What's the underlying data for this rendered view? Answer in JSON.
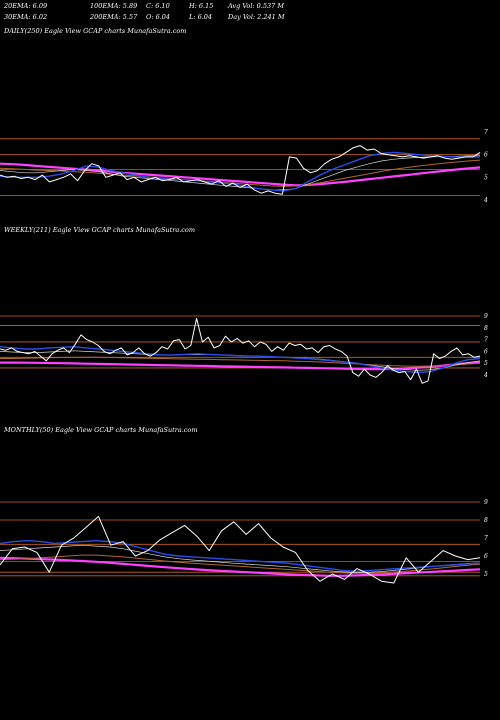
{
  "header": {
    "row1": [
      "20EMA: 6.09",
      "100EMA: 5.89",
      "C: 6.10",
      "H: 6.15",
      "Avg Vol: 0.537 M"
    ],
    "row2": [
      "30EMA: 6.02",
      "200EMA: 5.57",
      "O: 6.04",
      "L: 6.04",
      "Day Vol: 2.241 M"
    ]
  },
  "colors": {
    "background": "#000000",
    "price": "#ffffff",
    "ema20": "#2a4de8",
    "ema200": "#ff40ff",
    "ema_fine": "#d8d8d8",
    "ema_brown": "#b0662f",
    "level_line": "#c8641e"
  },
  "chart_data": [
    {
      "type": "line",
      "title": "DAILY(250) Eagle  View  GCAP charts MunafaSutra.com",
      "y_ticks": [
        "7",
        "6",
        "5",
        "4"
      ],
      "levels": [
        6.7,
        6.0,
        5.35,
        4.2
      ],
      "series": {
        "price": [
          5.1,
          5.0,
          5.05,
          4.95,
          5.0,
          4.9,
          5.1,
          4.8,
          4.9,
          5.0,
          5.15,
          4.85,
          5.3,
          5.6,
          5.5,
          5.0,
          5.1,
          5.2,
          4.9,
          5.0,
          4.8,
          4.9,
          5.0,
          4.85,
          4.9,
          5.0,
          4.8,
          4.85,
          4.9,
          4.8,
          4.7,
          4.85,
          4.6,
          4.75,
          4.55,
          4.7,
          4.45,
          4.3,
          4.4,
          4.3,
          4.25,
          5.9,
          5.85,
          5.4,
          5.2,
          5.3,
          5.6,
          5.8,
          5.9,
          6.1,
          6.3,
          6.4,
          6.2,
          6.25,
          6.05,
          6.0,
          5.95,
          5.9,
          5.95,
          5.9,
          5.85,
          5.9,
          5.95,
          5.85,
          5.8,
          5.85,
          5.9,
          5.9,
          6.1
        ],
        "ema20": [
          5.05,
          5.0,
          5.0,
          5.0,
          5.05,
          5.15,
          5.3,
          5.5,
          5.45,
          5.3,
          5.2,
          5.1,
          5.0,
          4.95,
          4.9,
          4.9,
          4.85,
          4.8,
          4.75,
          4.7,
          4.6,
          4.5,
          4.45,
          4.4,
          4.5,
          4.8,
          5.1,
          5.35,
          5.55,
          5.75,
          5.95,
          6.05,
          6.1,
          6.05,
          6.0,
          5.95,
          5.92,
          5.9,
          5.9,
          5.9
        ],
        "ema30": [
          5.3,
          5.25,
          5.2,
          5.2,
          5.25,
          5.3,
          5.35,
          5.3,
          5.25,
          5.15,
          5.05,
          5.0,
          4.95,
          4.9,
          4.85,
          4.8,
          4.75,
          4.7,
          4.65,
          4.6,
          4.55,
          4.5,
          4.45,
          4.45,
          4.5,
          4.7,
          4.9,
          5.1,
          5.3,
          5.45,
          5.6,
          5.72,
          5.8,
          5.85,
          5.88,
          5.9,
          5.92,
          5.93,
          5.95,
          5.95
        ],
        "ema100": [
          5.4,
          5.38,
          5.35,
          5.32,
          5.3,
          5.28,
          5.25,
          5.22,
          5.18,
          5.14,
          5.1,
          5.06,
          5.02,
          4.98,
          4.94,
          4.9,
          4.86,
          4.82,
          4.78,
          4.74,
          4.7,
          4.66,
          4.62,
          4.6,
          4.62,
          4.68,
          4.76,
          4.86,
          4.96,
          5.06,
          5.16,
          5.26,
          5.35,
          5.43,
          5.5,
          5.56,
          5.62,
          5.67,
          5.72,
          5.76
        ],
        "ema200": [
          5.6,
          5.58,
          5.55,
          5.5,
          5.46,
          5.42,
          5.38,
          5.34,
          5.3,
          5.25,
          5.2,
          5.16,
          5.12,
          5.08,
          5.04,
          5.0,
          4.96,
          4.92,
          4.88,
          4.84,
          4.8,
          4.76,
          4.72,
          4.68,
          4.65,
          4.66,
          4.7,
          4.75,
          4.8,
          4.86,
          4.92,
          4.98,
          5.04,
          5.1,
          5.16,
          5.22,
          5.28,
          5.34,
          5.39,
          5.44
        ]
      }
    },
    {
      "type": "line",
      "title": "WEEKLY(211) Eagle  View  GCAP charts MunafaSutra.com",
      "y_ticks": [
        "9",
        "8",
        "7",
        "6",
        "5",
        "4"
      ],
      "levels": [
        9.0,
        8.2,
        6.8,
        5.5,
        4.6
      ],
      "series": {
        "price": [
          6.2,
          6.1,
          6.3,
          6.0,
          5.9,
          5.8,
          6.0,
          5.6,
          5.2,
          5.8,
          6.1,
          6.3,
          5.9,
          6.6,
          7.4,
          7.0,
          6.8,
          6.5,
          6.0,
          5.8,
          6.1,
          6.3,
          5.7,
          5.9,
          6.3,
          5.8,
          5.6,
          5.9,
          6.4,
          6.2,
          6.9,
          7.0,
          6.2,
          6.5,
          8.8,
          6.8,
          7.2,
          6.3,
          6.5,
          7.3,
          6.8,
          7.1,
          6.7,
          6.9,
          6.4,
          6.8,
          6.6,
          6.0,
          6.4,
          6.1,
          6.7,
          6.5,
          6.6,
          6.2,
          6.3,
          5.9,
          6.4,
          6.5,
          6.2,
          6.0,
          5.6,
          4.2,
          3.9,
          4.5,
          4.0,
          3.8,
          4.2,
          4.8,
          4.4,
          4.2,
          4.3,
          3.6,
          4.5,
          3.3,
          3.5,
          5.8,
          5.4,
          5.6,
          6.0,
          6.3,
          5.7,
          5.8,
          5.5,
          5.6
        ],
        "ema20": [
          6.4,
          6.3,
          6.2,
          6.2,
          6.3,
          6.35,
          6.4,
          6.3,
          6.2,
          6.1,
          6.0,
          5.9,
          5.8,
          5.7,
          5.7,
          5.75,
          5.8,
          5.75,
          5.7,
          5.65,
          5.6,
          5.6,
          5.55,
          5.5,
          5.45,
          5.4,
          5.3,
          5.2,
          5.1,
          5.0,
          4.8,
          4.6,
          4.4,
          4.3,
          4.2,
          4.3,
          4.6,
          5.0,
          5.3,
          5.4
        ],
        "ema30": [
          6.0,
          5.95,
          5.9,
          5.9,
          5.95,
          6.0,
          6.05,
          6.0,
          5.95,
          5.9,
          5.85,
          5.8,
          5.75,
          5.7,
          5.7,
          5.72,
          5.74,
          5.72,
          5.7,
          5.66,
          5.62,
          5.6,
          5.56,
          5.52,
          5.48,
          5.42,
          5.35,
          5.25,
          5.12,
          5.0,
          4.85,
          4.7,
          4.55,
          4.45,
          4.4,
          4.45,
          4.6,
          4.85,
          5.05,
          5.2
        ],
        "ema100": [
          5.4,
          5.4,
          5.42,
          5.44,
          5.46,
          5.48,
          5.5,
          5.5,
          5.5,
          5.48,
          5.46,
          5.44,
          5.42,
          5.4,
          5.38,
          5.36,
          5.34,
          5.32,
          5.3,
          5.28,
          5.26,
          5.24,
          5.22,
          5.2,
          5.17,
          5.14,
          5.1,
          5.05,
          5.0,
          4.94,
          4.88,
          4.82,
          4.78,
          4.75,
          4.74,
          4.76,
          4.8,
          4.86,
          4.92,
          5.0
        ],
        "ema200": [
          5.05,
          5.05,
          5.04,
          5.03,
          5.02,
          5.0,
          4.98,
          4.96,
          4.94,
          4.92,
          4.9,
          4.88,
          4.86,
          4.84,
          4.82,
          4.8,
          4.78,
          4.76,
          4.74,
          4.72,
          4.7,
          4.68,
          4.66,
          4.64,
          4.62,
          4.6,
          4.58,
          4.56,
          4.54,
          4.52,
          4.5,
          4.5,
          4.52,
          4.56,
          4.62,
          4.7,
          4.8,
          4.9,
          5.0,
          5.1
        ]
      }
    },
    {
      "type": "line",
      "title": "MONTHLY(50) Eagle  View  GCAP charts MunafaSutra.com",
      "y_ticks": [
        "9",
        "8",
        "7",
        "6",
        "5"
      ],
      "levels": [
        9.0,
        8.0,
        6.65,
        5.7,
        5.1,
        4.9
      ],
      "series": {
        "price": [
          5.5,
          6.4,
          6.5,
          6.2,
          5.1,
          6.6,
          7.0,
          7.6,
          8.2,
          6.6,
          6.8,
          6.0,
          6.3,
          6.9,
          7.3,
          7.7,
          7.1,
          6.3,
          7.4,
          7.9,
          7.2,
          7.8,
          7.0,
          6.5,
          6.2,
          5.2,
          4.6,
          5.0,
          4.7,
          5.3,
          5.0,
          4.6,
          4.5,
          5.9,
          5.1,
          5.7,
          6.3,
          6.0,
          5.8,
          5.9
        ],
        "ema20": [
          6.7,
          6.8,
          6.85,
          6.8,
          6.7,
          6.75,
          6.8,
          6.85,
          6.8,
          6.7,
          6.5,
          6.3,
          6.1,
          6.0,
          5.95,
          5.9,
          5.85,
          5.8,
          5.75,
          5.7,
          5.65,
          5.6,
          5.5,
          5.4,
          5.3,
          5.2,
          5.15,
          5.2,
          5.25,
          5.3,
          5.35,
          5.4,
          5.45,
          5.5,
          5.55,
          5.6
        ],
        "ema30": [
          6.3,
          6.35,
          6.4,
          6.45,
          6.5,
          6.55,
          6.6,
          6.55,
          6.5,
          6.4,
          6.25,
          6.1,
          5.95,
          5.85,
          5.78,
          5.72,
          5.66,
          5.6,
          5.55,
          5.5,
          5.45,
          5.4,
          5.32,
          5.25,
          5.18,
          5.12,
          5.08,
          5.1,
          5.15,
          5.22,
          5.3,
          5.38,
          5.45,
          5.52,
          5.58,
          5.62
        ],
        "ema100": [
          5.8,
          5.82,
          5.85,
          5.9,
          5.95,
          6.0,
          6.05,
          6.05,
          6.0,
          5.95,
          5.88,
          5.8,
          5.72,
          5.65,
          5.6,
          5.55,
          5.5,
          5.45,
          5.4,
          5.35,
          5.3,
          5.25,
          5.2,
          5.15,
          5.1,
          5.06,
          5.04,
          5.05,
          5.08,
          5.12,
          5.18,
          5.25,
          5.32,
          5.4,
          5.48,
          5.55
        ],
        "ema200": [
          5.9,
          5.88,
          5.85,
          5.82,
          5.8,
          5.76,
          5.72,
          5.68,
          5.62,
          5.56,
          5.5,
          5.44,
          5.38,
          5.32,
          5.27,
          5.22,
          5.18,
          5.14,
          5.1,
          5.06,
          5.02,
          4.98,
          4.95,
          4.92,
          4.9,
          4.9,
          4.92,
          4.95,
          4.98,
          5.02,
          5.06,
          5.1,
          5.14,
          5.18,
          5.22,
          5.26
        ]
      }
    }
  ]
}
